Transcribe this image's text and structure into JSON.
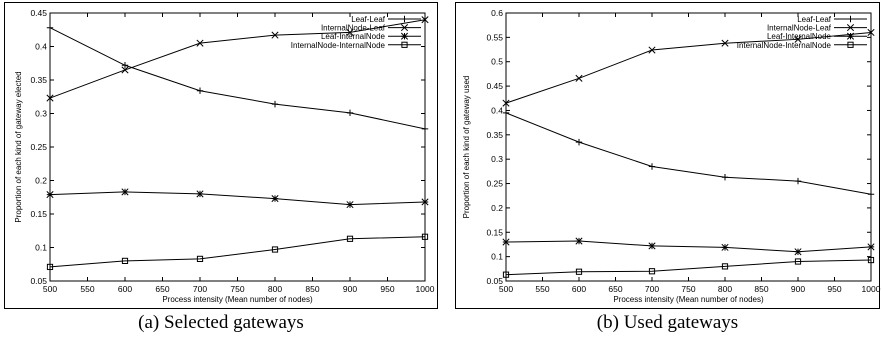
{
  "chart_data": [
    {
      "type": "line",
      "caption": "(a) Selected gateways",
      "xlabel": "Process intensity (Mean number of nodes)",
      "ylabel": "Proportion of each kind of gateway elected",
      "x": [
        500,
        600,
        700,
        800,
        900,
        1000
      ],
      "xlim": [
        500,
        1000
      ],
      "ylim": [
        0.05,
        0.45
      ],
      "xticks": [
        "500",
        "550",
        "600",
        "650",
        "700",
        "750",
        "800",
        "850",
        "900",
        "950",
        "1000"
      ],
      "yticks": [
        "0.05",
        "0.1",
        "0.15",
        "0.2",
        "0.25",
        "0.3",
        "0.35",
        "0.4",
        "0.45"
      ],
      "grid": false,
      "legend": "top-right",
      "series": [
        {
          "name": "Leaf-Leaf",
          "marker": "plus",
          "values": [
            0.428,
            0.372,
            0.334,
            0.314,
            0.301,
            0.277
          ]
        },
        {
          "name": "InternalNode-Leaf",
          "marker": "cross",
          "values": [
            0.323,
            0.365,
            0.405,
            0.417,
            0.421,
            0.44
          ]
        },
        {
          "name": "Leaf-InternalNode",
          "marker": "star",
          "values": [
            0.179,
            0.183,
            0.18,
            0.173,
            0.164,
            0.168
          ]
        },
        {
          "name": "InternalNode-InternalNode",
          "marker": "square",
          "values": [
            0.071,
            0.08,
            0.083,
            0.097,
            0.113,
            0.116
          ]
        }
      ]
    },
    {
      "type": "line",
      "caption": "(b) Used gateways",
      "xlabel": "Process intensity (Mean number of nodes)",
      "ylabel": "Proportion of each kind of gateway used",
      "x": [
        500,
        600,
        700,
        800,
        900,
        1000
      ],
      "xlim": [
        500,
        1000
      ],
      "ylim": [
        0.05,
        0.6
      ],
      "xticks": [
        "500",
        "550",
        "600",
        "650",
        "700",
        "750",
        "800",
        "850",
        "900",
        "950",
        "1000"
      ],
      "yticks": [
        "0.05",
        "0.1",
        "0.15",
        "0.2",
        "0.25",
        "0.3",
        "0.35",
        "0.4",
        "0.45",
        "0.5",
        "0.55",
        "0.6"
      ],
      "grid": false,
      "legend": "top-right",
      "series": [
        {
          "name": "Leaf-Leaf",
          "marker": "plus",
          "values": [
            0.395,
            0.335,
            0.285,
            0.263,
            0.255,
            0.228
          ]
        },
        {
          "name": "InternalNode-Leaf",
          "marker": "cross",
          "values": [
            0.415,
            0.466,
            0.524,
            0.538,
            0.546,
            0.56
          ]
        },
        {
          "name": "Leaf-InternalNode",
          "marker": "star",
          "values": [
            0.13,
            0.132,
            0.122,
            0.119,
            0.11,
            0.12
          ]
        },
        {
          "name": "InternalNode-InternalNode",
          "marker": "square",
          "values": [
            0.063,
            0.069,
            0.07,
            0.08,
            0.09,
            0.093
          ]
        }
      ]
    }
  ]
}
